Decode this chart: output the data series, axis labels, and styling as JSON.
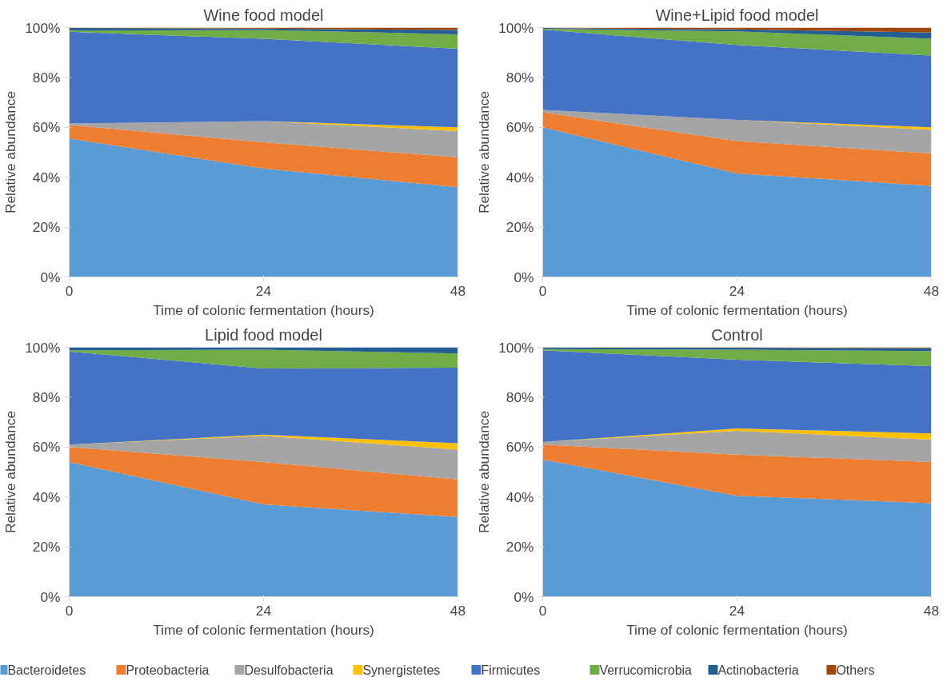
{
  "chart_data": [
    {
      "type": "area",
      "stacked": true,
      "title": "Wine food model",
      "xlabel": "Time of colonic fermentation (hours)",
      "ylabel": "Relative abundance",
      "x": [
        0,
        24,
        48
      ],
      "xlim": [
        0,
        48
      ],
      "xticks": [
        0,
        24,
        48
      ],
      "ylim": [
        0,
        100
      ],
      "yticks": [
        {
          "value": 0,
          "label": "0%"
        },
        {
          "value": 20,
          "label": "20%"
        },
        {
          "value": 40,
          "label": "40%"
        },
        {
          "value": 60,
          "label": "60%"
        },
        {
          "value": 80,
          "label": "80%"
        },
        {
          "value": 100,
          "label": "100%"
        }
      ],
      "grid": false,
      "legend": "bottom",
      "series": [
        {
          "name": "Bacteroidetes",
          "color": "#5b9bd5",
          "values": [
            55.5,
            43.5,
            36
          ]
        },
        {
          "name": "Proteobacteria",
          "color": "#ed7d31",
          "values": [
            5.5,
            10.5,
            12
          ]
        },
        {
          "name": "Desulfobacteria",
          "color": "#a5a5a5",
          "values": [
            0.5,
            8.5,
            10.5
          ]
        },
        {
          "name": "Synergistetes",
          "color": "#ffc000",
          "values": [
            0,
            0,
            1.5
          ]
        },
        {
          "name": "Firmicutes",
          "color": "#4472c4",
          "values": [
            36.8,
            33,
            31.5
          ]
        },
        {
          "name": "Verrucomicrobia",
          "color": "#70ad47",
          "values": [
            0.5,
            3.5,
            5.8
          ]
        },
        {
          "name": "Actinobacteria",
          "color": "#255e91",
          "values": [
            1,
            0.6,
            1.7
          ]
        },
        {
          "name": "Others",
          "color": "#9e480e",
          "values": [
            0.2,
            0.4,
            1
          ]
        }
      ]
    },
    {
      "type": "area",
      "stacked": true,
      "title": "Wine+Lipid food model",
      "xlabel": "Time of colonic fermentation (hours)",
      "ylabel": "Relative abundance",
      "x": [
        0,
        24,
        48
      ],
      "xlim": [
        0,
        48
      ],
      "xticks": [
        0,
        24,
        48
      ],
      "ylim": [
        0,
        100
      ],
      "yticks": [
        {
          "value": 0,
          "label": "0%"
        },
        {
          "value": 20,
          "label": "20%"
        },
        {
          "value": 40,
          "label": "40%"
        },
        {
          "value": 60,
          "label": "60%"
        },
        {
          "value": 80,
          "label": "80%"
        },
        {
          "value": 100,
          "label": "100%"
        }
      ],
      "grid": false,
      "series": [
        {
          "color": "#5b9bd5",
          "values": [
            60,
            41.5,
            36.5
          ]
        },
        {
          "color": "#ed7d31",
          "values": [
            6,
            13,
            13
          ]
        },
        {
          "color": "#a5a5a5",
          "values": [
            1,
            8.5,
            9.5
          ]
        },
        {
          "color": "#ffc000",
          "values": [
            0,
            0,
            1
          ]
        },
        {
          "color": "#4472c4",
          "values": [
            32.2,
            30,
            28.8
          ]
        },
        {
          "color": "#70ad47",
          "values": [
            0.3,
            5.5,
            6.7
          ]
        },
        {
          "color": "#255e91",
          "values": [
            0.3,
            0.8,
            2.5
          ]
        },
        {
          "color": "#9e480e",
          "values": [
            0.2,
            0.7,
            2
          ]
        }
      ]
    },
    {
      "type": "area",
      "stacked": true,
      "title": "Lipid food model",
      "xlabel": "Time of colonic fermentation (hours)",
      "ylabel": "Relative abundance",
      "x": [
        0,
        24,
        48
      ],
      "xlim": [
        0,
        48
      ],
      "xticks": [
        0,
        24,
        48
      ],
      "ylim": [
        0,
        100
      ],
      "yticks": [
        {
          "value": 0,
          "label": "0%"
        },
        {
          "value": 20,
          "label": "20%"
        },
        {
          "value": 40,
          "label": "40%"
        },
        {
          "value": 60,
          "label": "60%"
        },
        {
          "value": 80,
          "label": "80%"
        },
        {
          "value": 100,
          "label": "100%"
        }
      ],
      "grid": false,
      "series": [
        {
          "color": "#5b9bd5",
          "values": [
            54,
            37,
            32
          ]
        },
        {
          "color": "#ed7d31",
          "values": [
            6,
            17,
            15
          ]
        },
        {
          "color": "#a5a5a5",
          "values": [
            1,
            10.5,
            12
          ]
        },
        {
          "color": "#ffc000",
          "values": [
            0,
            0.5,
            2.5
          ]
        },
        {
          "color": "#4472c4",
          "values": [
            37.3,
            26.5,
            30.3
          ]
        },
        {
          "color": "#70ad47",
          "values": [
            0.5,
            7.5,
            5.7
          ]
        },
        {
          "color": "#255e91",
          "values": [
            1.2,
            1,
            2.5
          ]
        }
      ]
    },
    {
      "type": "area",
      "stacked": true,
      "title": "Control",
      "xlabel": "Time of colonic fermentation (hours)",
      "ylabel": "Relative abundance",
      "x": [
        0,
        24,
        48
      ],
      "xlim": [
        0,
        48
      ],
      "xticks": [
        0,
        24,
        48
      ],
      "ylim": [
        0,
        100
      ],
      "yticks": [
        {
          "value": 0,
          "label": "0%"
        },
        {
          "value": 20,
          "label": "20%"
        },
        {
          "value": 40,
          "label": "40%"
        },
        {
          "value": 60,
          "label": "60%"
        },
        {
          "value": 80,
          "label": "80%"
        },
        {
          "value": 100,
          "label": "100%"
        }
      ],
      "grid": false,
      "series": [
        {
          "color": "#5b9bd5",
          "values": [
            55,
            40.5,
            37.5
          ]
        },
        {
          "color": "#ed7d31",
          "values": [
            6,
            16.5,
            16.5
          ]
        },
        {
          "color": "#a5a5a5",
          "values": [
            1,
            9.5,
            9
          ]
        },
        {
          "color": "#ffc000",
          "values": [
            0,
            1,
            2.5
          ]
        },
        {
          "color": "#4472c4",
          "values": [
            36.8,
            27.5,
            27
          ]
        },
        {
          "color": "#70ad47",
          "values": [
            0.5,
            4,
            6
          ]
        },
        {
          "color": "#255e91",
          "values": [
            0.7,
            0.8,
            1.2
          ]
        },
        {
          "color": "#9e480e",
          "values": [
            0,
            0.2,
            0.3
          ]
        }
      ]
    }
  ]
}
